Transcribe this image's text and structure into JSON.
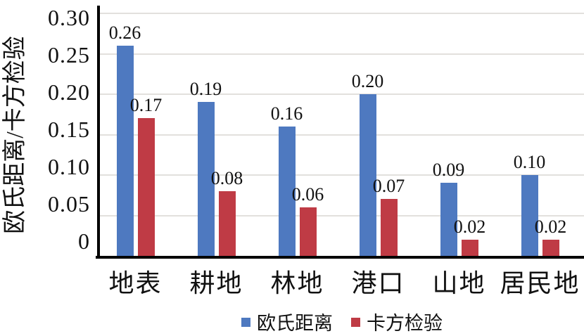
{
  "chart_data": {
    "type": "bar",
    "ylabel": "欧氏距离/卡方检验",
    "categories": [
      "地表",
      "耕地",
      "林地",
      "港口",
      "山地",
      "居民地"
    ],
    "series": [
      {
        "name": "欧氏距离",
        "color": "#4E79C0",
        "values": [
          0.26,
          0.19,
          0.16,
          0.2,
          0.09,
          0.1
        ]
      },
      {
        "name": "卡方检验",
        "color": "#BF3B45",
        "values": [
          0.17,
          0.08,
          0.06,
          0.07,
          0.02,
          0.02
        ]
      }
    ],
    "value_labels": [
      [
        "0.26",
        "0.19",
        "0.16",
        "0.20",
        "0.09",
        "0.10"
      ],
      [
        "0.17",
        "0.08",
        "0.06",
        "0.07",
        "0.02",
        "0.02"
      ]
    ],
    "y_ticks": [
      "0.30",
      "0.25",
      "0.20",
      "0.15",
      "0.10",
      "0.05",
      "0"
    ],
    "y_tick_values": [
      0.3,
      0.25,
      0.2,
      0.15,
      0.1,
      0.05,
      0
    ],
    "ylim": [
      0,
      0.3
    ],
    "grid": "horizontal",
    "legend_position": "bottom",
    "colors": {
      "axis": "#000000",
      "gridline": "#E2E0DD",
      "text": "#111111"
    }
  }
}
